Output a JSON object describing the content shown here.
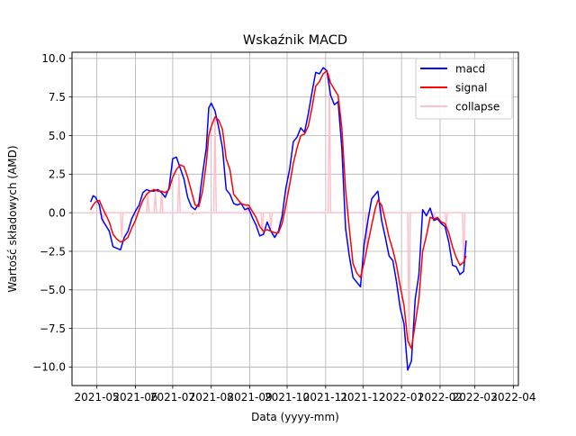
{
  "chart_data": {
    "type": "line",
    "title": "Wskaźnik MACD",
    "xlabel": "Data (yyyy-mm)",
    "ylabel": "Wartość składowych (AMD)",
    "xlim": [
      "2021-04-11",
      "2022-04-05"
    ],
    "ylim": [
      -11.2,
      10.4
    ],
    "x_ticks": [
      "2021-05",
      "2021-06",
      "2021-07",
      "2021-08",
      "2021-09",
      "2021-10",
      "2021-11",
      "2021-12",
      "2022-01",
      "2022-02",
      "2022-03",
      "2022-04"
    ],
    "y_ticks": [
      -10.0,
      -7.5,
      -5.0,
      -2.5,
      0.0,
      2.5,
      5.0,
      7.5,
      10.0
    ],
    "y_tick_labels": [
      "−10.0",
      "−7.5",
      "−5.0",
      "−2.5",
      "0.0",
      "2.5",
      "5.0",
      "7.5",
      "10.0"
    ],
    "grid": true,
    "legend_position": "top-right",
    "series": [
      {
        "name": "macd",
        "color": "#0000ff",
        "points": [
          [
            "2021-04-26",
            0.7
          ],
          [
            "2021-04-28",
            1.1
          ],
          [
            "2021-04-30",
            1.0
          ],
          [
            "2021-05-03",
            0.5
          ],
          [
            "2021-05-05",
            -0.4
          ],
          [
            "2021-05-08",
            -0.8
          ],
          [
            "2021-05-11",
            -1.2
          ],
          [
            "2021-05-14",
            -2.2
          ],
          [
            "2021-05-17",
            -2.3
          ],
          [
            "2021-05-20",
            -2.4
          ],
          [
            "2021-05-23",
            -1.6
          ],
          [
            "2021-05-26",
            -1.2
          ],
          [
            "2021-05-29",
            -0.4
          ],
          [
            "2021-06-01",
            0.1
          ],
          [
            "2021-06-04",
            0.5
          ],
          [
            "2021-06-07",
            1.3
          ],
          [
            "2021-06-10",
            1.5
          ],
          [
            "2021-06-13",
            1.4
          ],
          [
            "2021-06-16",
            1.4
          ],
          [
            "2021-06-19",
            1.5
          ],
          [
            "2021-06-22",
            1.3
          ],
          [
            "2021-06-25",
            1.0
          ],
          [
            "2021-06-28",
            1.6
          ],
          [
            "2021-07-01",
            3.5
          ],
          [
            "2021-07-04",
            3.6
          ],
          [
            "2021-07-07",
            2.9
          ],
          [
            "2021-07-10",
            2.2
          ],
          [
            "2021-07-13",
            1.0
          ],
          [
            "2021-07-16",
            0.4
          ],
          [
            "2021-07-19",
            0.2
          ],
          [
            "2021-07-22",
            0.6
          ],
          [
            "2021-07-25",
            2.5
          ],
          [
            "2021-07-28",
            4.2
          ],
          [
            "2021-07-30",
            6.8
          ],
          [
            "2021-08-01",
            7.1
          ],
          [
            "2021-08-04",
            6.6
          ],
          [
            "2021-08-07",
            5.5
          ],
          [
            "2021-08-10",
            4.2
          ],
          [
            "2021-08-13",
            1.5
          ],
          [
            "2021-08-16",
            1.2
          ],
          [
            "2021-08-19",
            0.6
          ],
          [
            "2021-08-22",
            0.5
          ],
          [
            "2021-08-25",
            0.6
          ],
          [
            "2021-08-28",
            0.2
          ],
          [
            "2021-08-31",
            0.3
          ],
          [
            "2021-09-03",
            -0.3
          ],
          [
            "2021-09-06",
            -0.8
          ],
          [
            "2021-09-09",
            -1.5
          ],
          [
            "2021-09-12",
            -1.4
          ],
          [
            "2021-09-15",
            -0.6
          ],
          [
            "2021-09-18",
            -1.2
          ],
          [
            "2021-09-21",
            -1.6
          ],
          [
            "2021-09-24",
            -1.2
          ],
          [
            "2021-09-27",
            -0.2
          ],
          [
            "2021-09-30",
            1.6
          ],
          [
            "2021-10-03",
            2.8
          ],
          [
            "2021-10-06",
            4.6
          ],
          [
            "2021-10-09",
            4.9
          ],
          [
            "2021-10-12",
            5.5
          ],
          [
            "2021-10-15",
            5.2
          ],
          [
            "2021-10-18",
            6.4
          ],
          [
            "2021-10-21",
            7.8
          ],
          [
            "2021-10-24",
            9.1
          ],
          [
            "2021-10-27",
            9.0
          ],
          [
            "2021-10-30",
            9.4
          ],
          [
            "2021-11-02",
            9.2
          ],
          [
            "2021-11-05",
            7.6
          ],
          [
            "2021-11-08",
            7.0
          ],
          [
            "2021-11-11",
            7.2
          ],
          [
            "2021-11-14",
            4.2
          ],
          [
            "2021-11-17",
            -1.0
          ],
          [
            "2021-11-20",
            -2.8
          ],
          [
            "2021-11-23",
            -4.2
          ],
          [
            "2021-11-26",
            -4.5
          ],
          [
            "2021-11-29",
            -4.8
          ],
          [
            "2021-12-02",
            -2.0
          ],
          [
            "2021-12-05",
            -0.5
          ],
          [
            "2021-12-08",
            0.9
          ],
          [
            "2021-12-11",
            1.2
          ],
          [
            "2021-12-13",
            1.4
          ],
          [
            "2021-12-16",
            -0.5
          ],
          [
            "2021-12-19",
            -1.6
          ],
          [
            "2021-12-22",
            -2.8
          ],
          [
            "2021-12-25",
            -3.1
          ],
          [
            "2021-12-28",
            -4.5
          ],
          [
            "2021-12-31",
            -6.2
          ],
          [
            "2022-01-03",
            -7.2
          ],
          [
            "2022-01-06",
            -10.2
          ],
          [
            "2022-01-09",
            -9.6
          ],
          [
            "2022-01-12",
            -5.6
          ],
          [
            "2022-01-15",
            -4.0
          ],
          [
            "2022-01-18",
            0.2
          ],
          [
            "2022-01-21",
            -0.2
          ],
          [
            "2022-01-24",
            0.3
          ],
          [
            "2022-01-27",
            -0.5
          ],
          [
            "2022-01-30",
            -0.4
          ],
          [
            "2022-02-02",
            -0.7
          ],
          [
            "2022-02-05",
            -0.9
          ],
          [
            "2022-02-08",
            -1.9
          ],
          [
            "2022-02-11",
            -3.4
          ],
          [
            "2022-02-14",
            -3.5
          ],
          [
            "2022-02-17",
            -4.0
          ],
          [
            "2022-02-20",
            -3.8
          ],
          [
            "2022-02-22",
            -1.8
          ]
        ]
      },
      {
        "name": "signal",
        "color": "#ff0000",
        "points": [
          [
            "2021-04-26",
            0.2
          ],
          [
            "2021-04-28",
            0.5
          ],
          [
            "2021-04-30",
            0.7
          ],
          [
            "2021-05-03",
            0.8
          ],
          [
            "2021-05-05",
            0.4
          ],
          [
            "2021-05-08",
            -0.1
          ],
          [
            "2021-05-11",
            -0.6
          ],
          [
            "2021-05-14",
            -1.4
          ],
          [
            "2021-05-17",
            -1.7
          ],
          [
            "2021-05-20",
            -1.9
          ],
          [
            "2021-05-23",
            -1.8
          ],
          [
            "2021-05-26",
            -1.6
          ],
          [
            "2021-05-29",
            -1.0
          ],
          [
            "2021-06-01",
            -0.5
          ],
          [
            "2021-06-04",
            0.2
          ],
          [
            "2021-06-07",
            0.8
          ],
          [
            "2021-06-10",
            1.2
          ],
          [
            "2021-06-13",
            1.4
          ],
          [
            "2021-06-16",
            1.5
          ],
          [
            "2021-06-19",
            1.4
          ],
          [
            "2021-06-22",
            1.4
          ],
          [
            "2021-06-25",
            1.3
          ],
          [
            "2021-06-28",
            1.5
          ],
          [
            "2021-07-01",
            2.3
          ],
          [
            "2021-07-04",
            2.8
          ],
          [
            "2021-07-07",
            3.1
          ],
          [
            "2021-07-10",
            3.0
          ],
          [
            "2021-07-13",
            2.3
          ],
          [
            "2021-07-16",
            1.4
          ],
          [
            "2021-07-19",
            0.5
          ],
          [
            "2021-07-22",
            0.4
          ],
          [
            "2021-07-25",
            1.4
          ],
          [
            "2021-07-28",
            3.2
          ],
          [
            "2021-07-30",
            5.0
          ],
          [
            "2021-08-01",
            5.6
          ],
          [
            "2021-08-04",
            6.2
          ],
          [
            "2021-08-07",
            6.0
          ],
          [
            "2021-08-10",
            5.4
          ],
          [
            "2021-08-13",
            3.5
          ],
          [
            "2021-08-16",
            2.8
          ],
          [
            "2021-08-19",
            1.2
          ],
          [
            "2021-08-22",
            0.9
          ],
          [
            "2021-08-25",
            0.6
          ],
          [
            "2021-08-28",
            0.5
          ],
          [
            "2021-08-31",
            0.5
          ],
          [
            "2021-09-03",
            0.1
          ],
          [
            "2021-09-06",
            -0.3
          ],
          [
            "2021-09-09",
            -0.9
          ],
          [
            "2021-09-12",
            -1.2
          ],
          [
            "2021-09-15",
            -1.1
          ],
          [
            "2021-09-18",
            -1.2
          ],
          [
            "2021-09-21",
            -1.3
          ],
          [
            "2021-09-24",
            -1.3
          ],
          [
            "2021-09-27",
            -0.7
          ],
          [
            "2021-09-30",
            0.5
          ],
          [
            "2021-10-03",
            1.8
          ],
          [
            "2021-10-06",
            3.2
          ],
          [
            "2021-10-09",
            4.2
          ],
          [
            "2021-10-12",
            5.0
          ],
          [
            "2021-10-15",
            5.1
          ],
          [
            "2021-10-18",
            5.6
          ],
          [
            "2021-10-21",
            6.8
          ],
          [
            "2021-10-24",
            8.2
          ],
          [
            "2021-10-27",
            8.5
          ],
          [
            "2021-10-30",
            9.0
          ],
          [
            "2021-11-02",
            9.2
          ],
          [
            "2021-11-05",
            8.4
          ],
          [
            "2021-11-08",
            8.0
          ],
          [
            "2021-11-11",
            7.6
          ],
          [
            "2021-11-14",
            5.5
          ],
          [
            "2021-11-17",
            1.5
          ],
          [
            "2021-11-20",
            -1.0
          ],
          [
            "2021-11-23",
            -3.3
          ],
          [
            "2021-11-26",
            -3.9
          ],
          [
            "2021-11-29",
            -4.2
          ],
          [
            "2021-12-02",
            -3.2
          ],
          [
            "2021-12-05",
            -2.0
          ],
          [
            "2021-12-08",
            -0.8
          ],
          [
            "2021-12-11",
            0.3
          ],
          [
            "2021-12-13",
            0.8
          ],
          [
            "2021-12-16",
            0.5
          ],
          [
            "2021-12-19",
            -0.5
          ],
          [
            "2021-12-22",
            -1.6
          ],
          [
            "2021-12-25",
            -2.4
          ],
          [
            "2021-12-28",
            -3.4
          ],
          [
            "2021-12-31",
            -4.8
          ],
          [
            "2022-01-03",
            -6.0
          ],
          [
            "2022-01-06",
            -8.3
          ],
          [
            "2022-01-09",
            -8.8
          ],
          [
            "2022-01-12",
            -7.2
          ],
          [
            "2022-01-15",
            -5.6
          ],
          [
            "2022-01-18",
            -2.5
          ],
          [
            "2022-01-21",
            -1.5
          ],
          [
            "2022-01-24",
            -0.3
          ],
          [
            "2022-01-27",
            -0.4
          ],
          [
            "2022-01-30",
            -0.3
          ],
          [
            "2022-02-02",
            -0.6
          ],
          [
            "2022-02-05",
            -0.7
          ],
          [
            "2022-02-08",
            -1.3
          ],
          [
            "2022-02-11",
            -2.2
          ],
          [
            "2022-02-14",
            -2.9
          ],
          [
            "2022-02-17",
            -3.4
          ],
          [
            "2022-02-20",
            -3.2
          ],
          [
            "2022-02-22",
            -2.8
          ]
        ]
      },
      {
        "name": "collapse",
        "color": "#ffc0cb",
        "points": [
          [
            "2021-04-26",
            0
          ],
          [
            "2021-05-05",
            0
          ],
          [
            "2021-05-06",
            -0.7
          ],
          [
            "2021-05-07",
            0
          ],
          [
            "2021-05-20",
            0
          ],
          [
            "2021-05-21",
            -1.6
          ],
          [
            "2021-05-22",
            0
          ],
          [
            "2021-06-10",
            0
          ],
          [
            "2021-06-11",
            1.3
          ],
          [
            "2021-06-12",
            0
          ],
          [
            "2021-06-16",
            0
          ],
          [
            "2021-06-17",
            1.3
          ],
          [
            "2021-06-18",
            0
          ],
          [
            "2021-06-21",
            0
          ],
          [
            "2021-06-22",
            1.3
          ],
          [
            "2021-06-23",
            0
          ],
          [
            "2021-07-05",
            0
          ],
          [
            "2021-07-06",
            2.5
          ],
          [
            "2021-07-07",
            0
          ],
          [
            "2021-07-16",
            0
          ],
          [
            "2021-07-17",
            -0.1
          ],
          [
            "2021-07-18",
            0
          ],
          [
            "2021-08-03",
            0
          ],
          [
            "2021-08-04",
            6.1
          ],
          [
            "2021-08-05",
            0
          ],
          [
            "2021-08-29",
            0
          ],
          [
            "2021-08-30",
            0.5
          ],
          [
            "2021-08-31",
            0
          ],
          [
            "2021-09-10",
            0
          ],
          [
            "2021-09-11",
            -1.3
          ],
          [
            "2021-09-12",
            0
          ],
          [
            "2021-09-17",
            0
          ],
          [
            "2021-09-18",
            -1.0
          ],
          [
            "2021-09-19",
            0
          ],
          [
            "2021-11-03",
            0
          ],
          [
            "2021-11-04",
            9.0
          ],
          [
            "2021-11-05",
            0
          ],
          [
            "2021-12-03",
            0
          ],
          [
            "2021-12-04",
            -2.5
          ],
          [
            "2021-12-05",
            0
          ],
          [
            "2021-12-14",
            0
          ],
          [
            "2021-12-15",
            0.6
          ],
          [
            "2021-12-16",
            0
          ],
          [
            "2022-01-06",
            0
          ],
          [
            "2022-01-07",
            -8.6
          ],
          [
            "2022-01-08",
            0
          ],
          [
            "2022-01-26",
            0
          ],
          [
            "2022-01-27",
            -0.4
          ],
          [
            "2022-01-28",
            0
          ],
          [
            "2022-02-05",
            0
          ],
          [
            "2022-02-06",
            -0.8
          ],
          [
            "2022-02-07",
            0
          ],
          [
            "2022-02-19",
            0
          ],
          [
            "2022-02-20",
            -3.2
          ],
          [
            "2022-02-21",
            0
          ],
          [
            "2022-02-22",
            0
          ]
        ]
      }
    ]
  }
}
